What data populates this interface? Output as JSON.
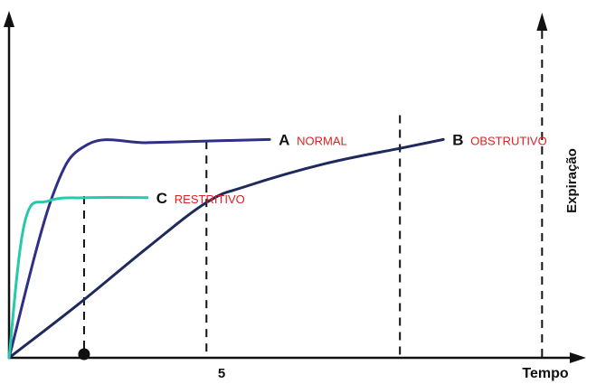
{
  "chart_data": {
    "type": "line",
    "xlabel": "Tempo",
    "ylabel": "Expiração",
    "x_ticks": [
      "5"
    ],
    "series": [
      {
        "letter": "A",
        "name": "NORMAL",
        "color": "#2e2f86",
        "points": [
          [
            0,
            0
          ],
          [
            1.1,
            0.5
          ],
          [
            2.0,
            0.66
          ],
          [
            3.5,
            0.665
          ],
          [
            5.0,
            0.67
          ],
          [
            6.6,
            0.675
          ]
        ]
      },
      {
        "letter": "B",
        "name": "OBSTRUTIVO",
        "color": "#1f2a5c",
        "points": [
          [
            0,
            0
          ],
          [
            1.8,
            0.17
          ],
          [
            3.5,
            0.34
          ],
          [
            5.0,
            0.48
          ],
          [
            6.0,
            0.53
          ],
          [
            8.0,
            0.6
          ],
          [
            10.0,
            0.65
          ],
          [
            11.0,
            0.675
          ]
        ]
      },
      {
        "letter": "C",
        "name": "RESTRITIVO",
        "color": "#27c9a8",
        "points": [
          [
            0,
            0
          ],
          [
            0.4,
            0.42
          ],
          [
            1.0,
            0.485
          ],
          [
            2.0,
            0.495
          ],
          [
            3.5,
            0.495
          ]
        ]
      }
    ],
    "dashed_markers": [
      {
        "x": 1.9,
        "top": 0.5,
        "dot": true
      },
      {
        "x": 5.0,
        "top": 0.67,
        "dot": false
      },
      {
        "x": 9.9,
        "top": 0.75,
        "dot": false
      },
      {
        "x": 13.5,
        "top": 1.0,
        "arrow": true,
        "dot": false
      }
    ],
    "xlim": [
      0,
      14.5
    ],
    "ylim": [
      0,
      1.0
    ],
    "grid": false
  }
}
